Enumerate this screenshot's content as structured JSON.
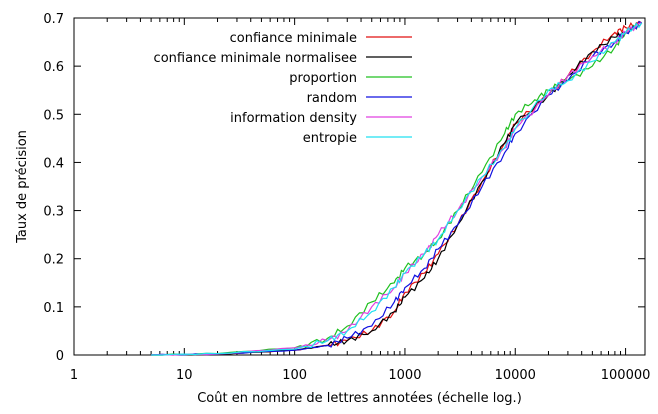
{
  "chart_data": {
    "type": "line",
    "title": "",
    "xlabel": "Coût en nombre de lettres annotées (échelle log.)",
    "ylabel": "Taux de précision",
    "xscale": "log",
    "xlim": [
      1,
      150000
    ],
    "ylim": [
      0,
      0.7
    ],
    "x_ticks": [
      1,
      10,
      100,
      1000,
      10000,
      100000
    ],
    "x_tick_labels": [
      "1",
      "10",
      "100",
      "1000",
      "10000",
      "100000"
    ],
    "y_ticks": [
      0,
      0.1,
      0.2,
      0.3,
      0.4,
      0.5,
      0.6,
      0.7
    ],
    "y_tick_labels": [
      "0",
      "0.1",
      "0.2",
      "0.3",
      "0.4",
      "0.5",
      "0.6",
      "0.7"
    ],
    "grid": false,
    "legend_position": "top-left",
    "series": [
      {
        "name": "confiance minimale",
        "color": "#e01010",
        "x": [
          5,
          20,
          100,
          200,
          300,
          500,
          800,
          1000,
          1500,
          2000,
          3000,
          5000,
          8000,
          10000,
          20000,
          30000,
          50000,
          80000,
          100000,
          140000
        ],
        "y": [
          0,
          0.002,
          0.01,
          0.02,
          0.03,
          0.05,
          0.09,
          0.13,
          0.17,
          0.21,
          0.27,
          0.36,
          0.44,
          0.48,
          0.54,
          0.58,
          0.63,
          0.67,
          0.68,
          0.69
        ]
      },
      {
        "name": "confiance minimale normalisee",
        "color": "#000000",
        "x": [
          5,
          20,
          100,
          200,
          300,
          500,
          800,
          1000,
          1500,
          2000,
          3000,
          5000,
          8000,
          10000,
          20000,
          30000,
          50000,
          80000,
          100000,
          140000
        ],
        "y": [
          0,
          0.002,
          0.01,
          0.02,
          0.03,
          0.05,
          0.09,
          0.12,
          0.16,
          0.2,
          0.27,
          0.36,
          0.44,
          0.48,
          0.54,
          0.58,
          0.63,
          0.66,
          0.67,
          0.69
        ]
      },
      {
        "name": "proportion",
        "color": "#20c020",
        "x": [
          5,
          20,
          100,
          200,
          300,
          500,
          800,
          1000,
          1500,
          2000,
          3000,
          5000,
          8000,
          10000,
          15000,
          20000,
          30000,
          50000,
          80000,
          100000,
          140000
        ],
        "y": [
          0,
          0.003,
          0.015,
          0.035,
          0.06,
          0.11,
          0.15,
          0.18,
          0.21,
          0.24,
          0.3,
          0.38,
          0.46,
          0.5,
          0.53,
          0.55,
          0.57,
          0.6,
          0.64,
          0.67,
          0.69
        ]
      },
      {
        "name": "random",
        "color": "#1010e0",
        "x": [
          5,
          20,
          100,
          200,
          300,
          500,
          800,
          1000,
          1500,
          2000,
          3000,
          5000,
          8000,
          10000,
          20000,
          30000,
          50000,
          80000,
          100000,
          140000
        ],
        "y": [
          0,
          0.002,
          0.01,
          0.02,
          0.035,
          0.06,
          0.11,
          0.14,
          0.18,
          0.22,
          0.27,
          0.35,
          0.42,
          0.46,
          0.54,
          0.57,
          0.62,
          0.65,
          0.67,
          0.69
        ]
      },
      {
        "name": "information density",
        "color": "#e040e0",
        "x": [
          5,
          20,
          100,
          200,
          300,
          500,
          800,
          1000,
          1500,
          2000,
          3000,
          5000,
          8000,
          10000,
          20000,
          30000,
          50000,
          80000,
          100000,
          140000
        ],
        "y": [
          0,
          0.002,
          0.015,
          0.03,
          0.05,
          0.1,
          0.14,
          0.17,
          0.21,
          0.25,
          0.3,
          0.37,
          0.43,
          0.47,
          0.54,
          0.58,
          0.62,
          0.65,
          0.67,
          0.69
        ]
      },
      {
        "name": "entropie",
        "color": "#20e0f0",
        "x": [
          5,
          20,
          100,
          200,
          300,
          500,
          800,
          1000,
          1500,
          2000,
          3000,
          5000,
          8000,
          10000,
          20000,
          30000,
          50000,
          80000,
          100000,
          140000
        ],
        "y": [
          0,
          0.003,
          0.012,
          0.03,
          0.05,
          0.09,
          0.14,
          0.17,
          0.21,
          0.24,
          0.3,
          0.37,
          0.43,
          0.47,
          0.55,
          0.57,
          0.61,
          0.65,
          0.67,
          0.69
        ]
      }
    ]
  }
}
